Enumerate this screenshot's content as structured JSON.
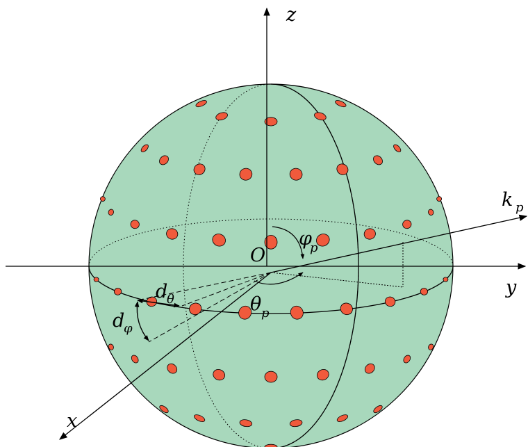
{
  "labels": {
    "z": "z",
    "y": "y",
    "x": "x",
    "origin": "O",
    "k": "k",
    "k_sub": "p",
    "phi": "φ",
    "phi_sub": "p",
    "theta": "θ",
    "theta_sub": "p",
    "d": "d",
    "d_theta_sub": "θ",
    "d_phi_sub": "φ"
  },
  "colors": {
    "sphere_fill": "#a8d8bc",
    "element_fill": "#f05a3c",
    "stroke": "#000000"
  }
}
